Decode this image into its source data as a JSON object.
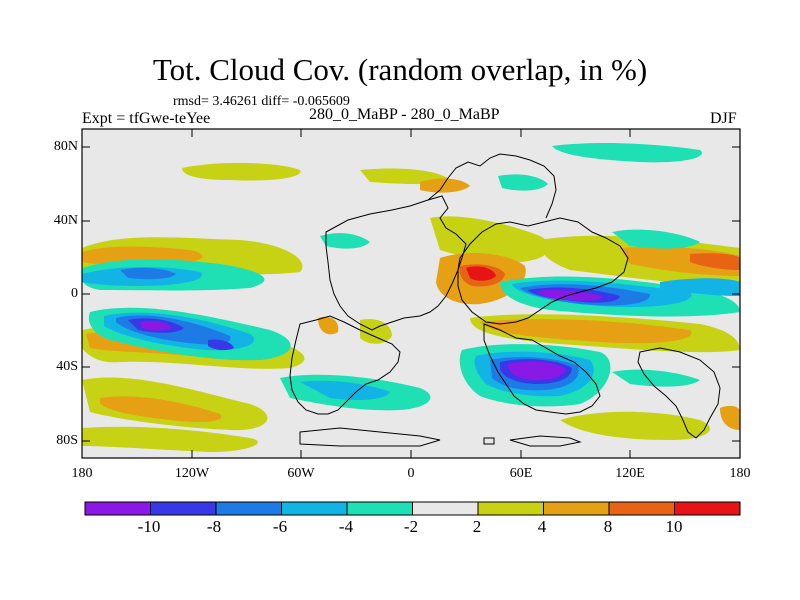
{
  "title": "Tot. Cloud Cov. (random overlap, in %)",
  "stats": "rmsd= 3.46261 diff= -0.065609",
  "expt_label": "Expt = tfGwe-teYee",
  "experiment": "280_0_MaBP - 280_0_MaBP",
  "season": "DJF",
  "lat_ticks": [
    "80N",
    "40N",
    "0",
    "40S",
    "80S"
  ],
  "lon_ticks": [
    "180",
    "120W",
    "60W",
    "0",
    "60E",
    "120E",
    "180"
  ],
  "colorbar": {
    "labels": [
      "-10",
      "-8",
      "-6",
      "-4",
      "-2",
      "2",
      "4",
      "8",
      "10"
    ],
    "colors": [
      "#8a19e6",
      "#3838e8",
      "#1e7be6",
      "#12b4e6",
      "#1ee0b4",
      "#e8e8e8",
      "#c8d214",
      "#e6a014",
      "#e66414",
      "#e61414"
    ]
  }
}
